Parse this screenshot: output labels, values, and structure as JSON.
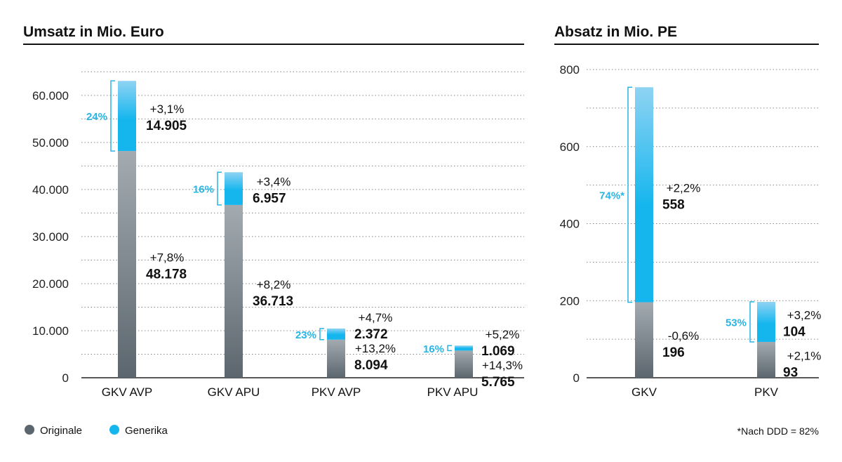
{
  "colors": {
    "originale_top": "#a3abb1",
    "originale_bottom": "#5c666e",
    "generika_top": "#8fd3f3",
    "generika_mid": "#15b6ee",
    "bracket": "#29b4e6",
    "axis": "#222222",
    "grid": "#888888"
  },
  "legend": {
    "originale": "Originale",
    "generika": "Generika"
  },
  "footnote": "*Nach DDD = 82%",
  "chart_data": [
    {
      "type": "bar",
      "stacked": true,
      "title": "Umsatz in Mio. Euro",
      "ylim": [
        0,
        65000
      ],
      "yticks": [
        0,
        10000,
        20000,
        30000,
        40000,
        50000,
        60000
      ],
      "ytick_labels": [
        "0",
        "10.000",
        "20.000",
        "30.000",
        "40.000",
        "50.000",
        "60.000"
      ],
      "grid": true,
      "categories": [
        "GKV AVP",
        "GKV APU",
        "PKV AVP",
        "PKV APU"
      ],
      "series": [
        {
          "name": "Originale",
          "values": [
            48178,
            36713,
            8094,
            5765
          ],
          "value_labels": [
            "48.178",
            "36.713",
            "8.094",
            "5.765"
          ],
          "change_labels": [
            "+7,8%",
            "+8,2%",
            "+13,2%",
            "+14,3%"
          ]
        },
        {
          "name": "Generika",
          "values": [
            14905,
            6957,
            2372,
            1069
          ],
          "value_labels": [
            "14.905",
            "6.957",
            "2.372",
            "1.069"
          ],
          "change_labels": [
            "+3,1%",
            "+3,4%",
            "+4,7%",
            "+5,2%"
          ]
        }
      ],
      "generika_share_labels": [
        "24%",
        "16%",
        "23%",
        "16%"
      ]
    },
    {
      "type": "bar",
      "stacked": true,
      "title": "Absatz in Mio. PE",
      "ylim": [
        0,
        800
      ],
      "yticks": [
        0,
        200,
        400,
        600,
        800
      ],
      "ytick_labels": [
        "0",
        "200",
        "400",
        "600",
        "800"
      ],
      "grid": true,
      "categories": [
        "GKV",
        "PKV"
      ],
      "series": [
        {
          "name": "Originale",
          "values": [
            196,
            93
          ],
          "value_labels": [
            "196",
            "93"
          ],
          "change_labels": [
            "-0,6%",
            "+2,1%"
          ]
        },
        {
          "name": "Generika",
          "values": [
            558,
            104
          ],
          "value_labels": [
            "558",
            "104"
          ],
          "change_labels": [
            "+2,2%",
            "+3,2%"
          ]
        }
      ],
      "generika_share_labels": [
        "74%*",
        "53%"
      ]
    }
  ]
}
